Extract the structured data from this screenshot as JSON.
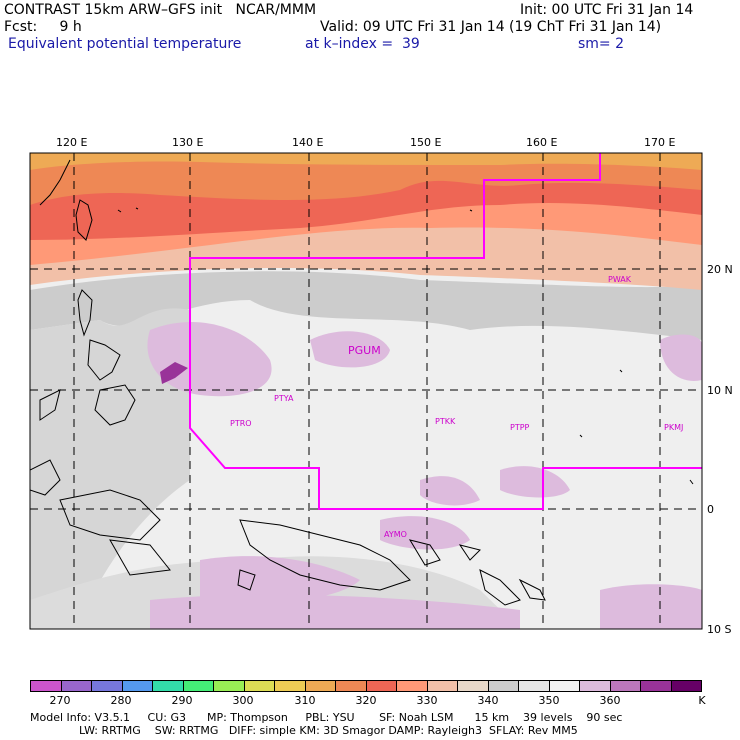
{
  "header": {
    "title": "CONTRAST 15km ARW–GFS init   NCAR/MMM",
    "init": "Init: 00 UTC Fri 31 Jan 14",
    "fcst": "Fcst:     9 h",
    "valid": "Valid: 09 UTC Fri 31 Jan 14 (19 ChT Fri 31 Jan 14)",
    "field": "Equivalent potential temperature",
    "level": "at k–index =  39",
    "smooth": "sm= 2"
  },
  "axes": {
    "lon_labels": [
      "120 E",
      "130 E",
      "140 E",
      "150 E",
      "160 E",
      "170 E"
    ],
    "lat_labels": [
      "20 N",
      "10 N",
      "0",
      "10 S"
    ]
  },
  "stations": [
    "PGUM",
    "PWAK",
    "PTYA",
    "PTRO",
    "PTKK",
    "PTPP",
    "PKMJ",
    "AYMO"
  ],
  "colorbar": {
    "unit": "K",
    "labels": [
      "270",
      "280",
      "290",
      "300",
      "310",
      "320",
      "330",
      "340",
      "350",
      "360"
    ],
    "colors": [
      "#cc55cc",
      "#9966cc",
      "#7777dd",
      "#5599ee",
      "#33ddaa",
      "#44ee77",
      "#99ee55",
      "#dddd55",
      "#eecc55",
      "#eeaa55",
      "#ee8855",
      "#ee6655",
      "#ff9977",
      "#f2c0a8",
      "#e8d8c8",
      "#cccccc",
      "#e6e6e6",
      "#f2f2f2",
      "#ddbbdd",
      "#bb77bb",
      "#993399",
      "#660066"
    ]
  },
  "footer": {
    "line1": "Model Info: V3.5.1     CU: G3      MP: Thompson     PBL: YSU       SF: Noah LSM      15 km    39 levels    90 sec",
    "line2": "              LW: RRTMG    SW: RRTMG   DIFF: simple KM: 3D Smagor DAMP: Rayleigh3  SFLAY: Rev MM5"
  }
}
